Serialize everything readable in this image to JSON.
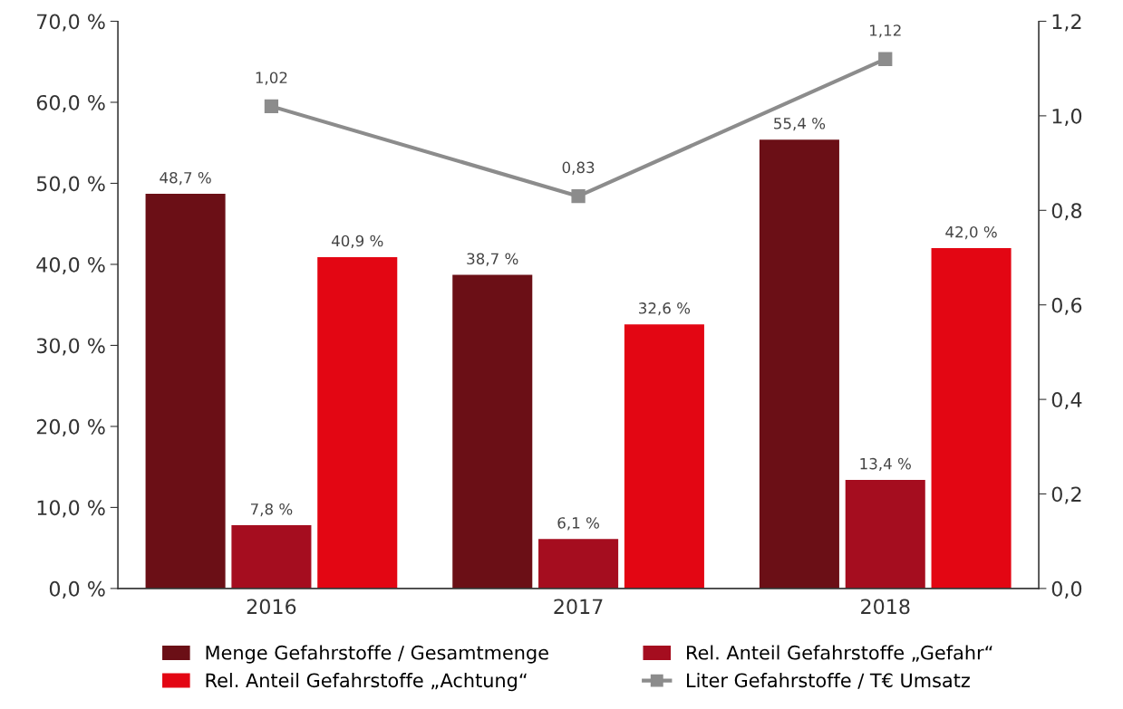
{
  "chart_data": {
    "type": "bar",
    "categories": [
      "2016",
      "2017",
      "2018"
    ],
    "series": [
      {
        "name": "Menge Gefahrstoffe / Gesamtmenge",
        "color": "#6b0f16",
        "values": [
          48.7,
          38.7,
          55.4
        ],
        "value_labels": [
          "48,7 %",
          "38,7 %",
          "55,4 %"
        ]
      },
      {
        "name": "Rel. Anteil Gefahrstoffe „Gefahr“",
        "color": "#a50d1f",
        "values": [
          7.8,
          6.1,
          13.4
        ],
        "value_labels": [
          "7,8 %",
          "6,1 %",
          "13,4 %"
        ]
      },
      {
        "name": "Rel. Anteil Gefahrstoffe „Achtung“",
        "color": "#e30613",
        "values": [
          40.9,
          32.6,
          42.0
        ],
        "value_labels": [
          "40,9 %",
          "32,6 %",
          "42,0 %"
        ]
      },
      {
        "name": "Liter Gefahrstoffe / T€ Umsatz",
        "type": "line",
        "axis": "y2",
        "color": "#8c8c8c",
        "marker": "square",
        "values": [
          1.02,
          0.83,
          1.12
        ],
        "value_labels": [
          "1,02",
          "0,83",
          "1,12"
        ]
      }
    ],
    "ylim": [
      0,
      70
    ],
    "yticks": [
      {
        "value": 0,
        "label": "0,0 %"
      },
      {
        "value": 10,
        "label": "10,0 %"
      },
      {
        "value": 20,
        "label": "20,0 %"
      },
      {
        "value": 30,
        "label": "30,0 %"
      },
      {
        "value": 40,
        "label": "40,0 %"
      },
      {
        "value": 50,
        "label": "50,0 %"
      },
      {
        "value": 60,
        "label": "60,0 %"
      },
      {
        "value": 70,
        "label": "70,0 %"
      }
    ],
    "y2lim": [
      0,
      1.2
    ],
    "y2ticks": [
      {
        "value": 0,
        "label": "0,0"
      },
      {
        "value": 0.2,
        "label": "0,2"
      },
      {
        "value": 0.4,
        "label": "0,4"
      },
      {
        "value": 0.6,
        "label": "0,6"
      },
      {
        "value": 0.8,
        "label": "0,8"
      },
      {
        "value": 1.0,
        "label": "1,0"
      },
      {
        "value": 1.2,
        "label": "1,2"
      }
    ],
    "grid": false,
    "legend": "bottom"
  }
}
